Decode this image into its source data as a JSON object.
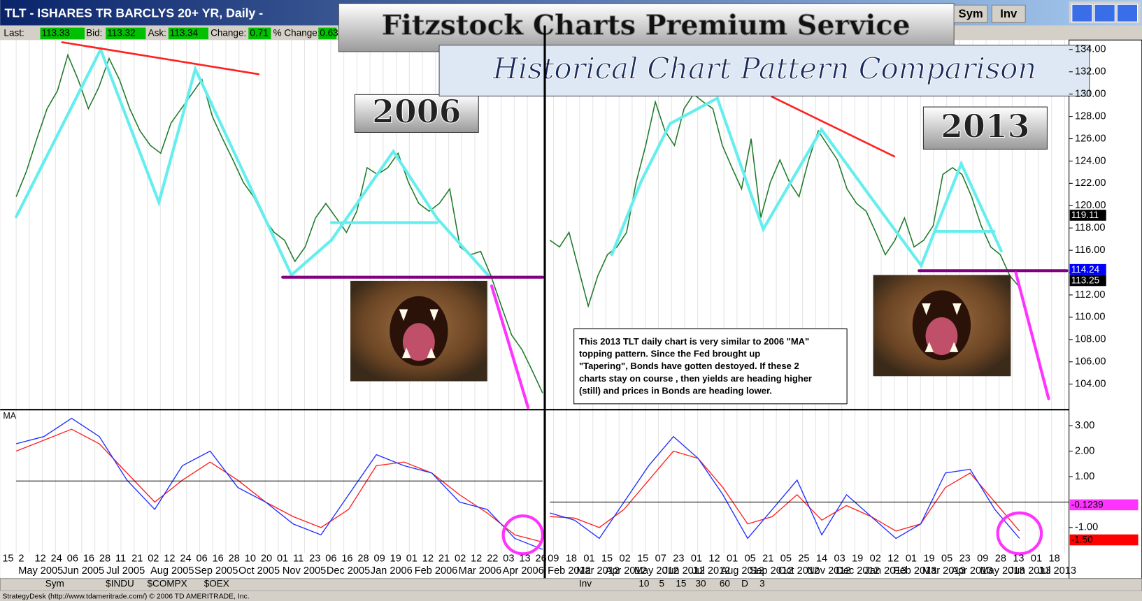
{
  "window": {
    "title": "TLT - ISHARES TR BARCLYS 20+ YR, Daily -",
    "buttons": [
      "Sym",
      "Inv"
    ]
  },
  "quote": [
    {
      "label": "Last:",
      "value": "113.33"
    },
    {
      "label": "Bid:",
      "value": "113.32"
    },
    {
      "label": "Ask:",
      "value": "113.34"
    },
    {
      "label": "Change:",
      "value": "0.71"
    },
    {
      "label": "% Change:",
      "value": "0.63"
    }
  ],
  "banner": {
    "title": "Fitzstock Charts Premium Service",
    "subtitle": "Historical Chart Pattern Comparison"
  },
  "panels": [
    {
      "label": "2006"
    },
    {
      "label": "2013"
    }
  ],
  "note": [
    "This 2013 TLT daily chart is very similar to 2006 \"MA\"",
    "topping pattern.    Since the Fed brought up",
    "\"Tapering\", Bonds have gotten destoyed.   If these 2",
    "charts stay on course , then yields are heading higher",
    "(still) and prices in Bonds are heading lower."
  ],
  "price_chart": {
    "ylim": [
      102,
      135
    ],
    "yticks": [
      {
        "value": 104,
        "label": "104.00"
      },
      {
        "value": 106,
        "label": "106.00"
      },
      {
        "value": 108,
        "label": "108.00"
      },
      {
        "value": 110,
        "label": "110.00"
      },
      {
        "value": 112,
        "label": "112.00"
      },
      {
        "value": 114,
        "label": "114.00"
      },
      {
        "value": 116,
        "label": "116.00"
      },
      {
        "value": 118,
        "label": "118.00"
      },
      {
        "value": 120,
        "label": "120.00"
      },
      {
        "value": 122,
        "label": "122.00"
      },
      {
        "value": 124,
        "label": "124.00"
      },
      {
        "value": 126,
        "label": "126.00"
      },
      {
        "value": 128,
        "label": "128.00"
      },
      {
        "value": 130,
        "label": "130.00"
      },
      {
        "value": 132,
        "label": "132.00"
      },
      {
        "value": 134,
        "label": "134.00"
      }
    ],
    "left_values": [
      120.8,
      123.1,
      126.0,
      128.7,
      130.3,
      133.5,
      131.3,
      128.7,
      130.6,
      133.2,
      131.3,
      128.7,
      126.7,
      125.4,
      124.7,
      127.4,
      128.7,
      130.0,
      131.3,
      128.0,
      126.0,
      124.1,
      122.1,
      120.8,
      118.9,
      117.6,
      116.9,
      115.0,
      116.3,
      118.9,
      120.2,
      118.9,
      117.6,
      119.5,
      123.4,
      122.8,
      123.4,
      124.7,
      122.1,
      120.2,
      119.5,
      120.2,
      121.5,
      116.3,
      115.6,
      115.9,
      113.7,
      111.0,
      108.4,
      107.1,
      105.2,
      103.2
    ],
    "right_values": [
      116.9,
      116.3,
      117.6,
      114.3,
      111.0,
      113.7,
      115.6,
      116.3,
      117.6,
      122.1,
      125.4,
      129.3,
      126.7,
      125.4,
      128.7,
      130.0,
      129.3,
      128.7,
      125.4,
      123.4,
      121.5,
      126.0,
      118.9,
      122.1,
      124.1,
      122.1,
      120.8,
      124.1,
      126.7,
      125.4,
      124.1,
      121.5,
      120.2,
      119.5,
      117.6,
      115.6,
      116.9,
      118.9,
      116.3,
      116.9,
      118.2,
      122.8,
      123.4,
      122.8,
      120.8,
      118.2,
      116.3,
      115.6,
      113.7,
      112.7
    ],
    "markers": [
      {
        "value": 119.11,
        "color": "#000000"
      },
      {
        "value": 114.24,
        "color": "#0000ff"
      },
      {
        "value": 113.25,
        "color": "#000000"
      }
    ]
  },
  "macd_chart": {
    "label": "MA",
    "ylim": [
      -2,
      3.5
    ],
    "yticks": [
      {
        "value": 3,
        "label": "3.00"
      },
      {
        "value": 2,
        "label": "2.00"
      },
      {
        "value": 1,
        "label": "1.00"
      },
      {
        "value": -1,
        "label": "-1.00"
      }
    ],
    "left_macd": [
      2.29,
      2.57,
      3.29,
      2.57,
      0.86,
      -0.29,
      1.43,
      2.0,
      0.57,
      0,
      -0.86,
      -1.29,
      0.29,
      1.86,
      1.43,
      1.14,
      0,
      -0.29,
      -1.43,
      -1.86
    ],
    "left_signal": [
      2.0,
      2.43,
      2.86,
      2.29,
      1.14,
      0,
      0.86,
      1.57,
      0.86,
      0,
      -0.57,
      -1.0,
      -0.29,
      1.43,
      1.57,
      1.14,
      0.29,
      -0.43,
      -1.29,
      -1.57
    ],
    "right_macd": [
      -0.43,
      -0.71,
      -1.43,
      0,
      1.43,
      2.57,
      1.71,
      0.29,
      -1.43,
      -0.29,
      0.86,
      -1.29,
      0.29,
      -0.57,
      -1.43,
      -0.86,
      1.14,
      1.29,
      -0.29,
      -1.43
    ],
    "right_signal": [
      -0.57,
      -0.63,
      -1.0,
      -0.29,
      0.86,
      2.0,
      1.71,
      0.57,
      -0.86,
      -0.57,
      0.29,
      -0.71,
      -0.14,
      -0.57,
      -1.14,
      -0.86,
      0.57,
      1.14,
      0,
      -1.14
    ],
    "markers": [
      {
        "value": -0.1239,
        "color": "#ff33ff"
      },
      {
        "value": -1.5,
        "label": "-1.50",
        "color": "#ff0000"
      }
    ]
  },
  "date_axis": {
    "left_days": [
      "15",
      "2",
      "12",
      "24",
      "06",
      "16",
      "28",
      "11",
      "21",
      "02",
      "12",
      "24",
      "06",
      "16",
      "28",
      "10",
      "20",
      "01",
      "11",
      "23",
      "06",
      "16",
      "28",
      "09",
      "19",
      "01",
      "12",
      "21",
      "02",
      "12",
      "22",
      "03",
      "13",
      "26"
    ],
    "left_months": [
      "May 2005",
      "Jun 2005",
      "Jul 2005",
      "Aug 2005",
      "Sep 2005",
      "Oct 2005",
      "Nov 2005",
      "Dec 2005",
      "Jan 2006",
      "Feb 2006",
      "Mar 2006",
      "Apr 2006"
    ],
    "right_days": [
      "09",
      "18",
      "01",
      "15",
      "02",
      "15",
      "07",
      "23",
      "01",
      "12",
      "01",
      "05",
      "21",
      "05",
      "25",
      "14",
      "03",
      "19",
      "02",
      "12",
      "01",
      "19",
      "05",
      "23",
      "09",
      "28",
      "13",
      "01",
      "18"
    ],
    "right_months": [
      "Feb 2012",
      "Mar 2012",
      "Apr 2012",
      "May 2012",
      "Jun 2012",
      "Jul 2012",
      "Aug 2012",
      "Sep 2012",
      "Oct 2012",
      "Nov 2012",
      "Dec 2012",
      "Jan 2013",
      "Feb 2013",
      "Mar 2013",
      "Apr 2013",
      "May 2013",
      "Jun 2013",
      "Jul 2013"
    ]
  },
  "toolbar": {
    "left": [
      "Sym",
      "$INDU",
      "$COMPX",
      "$OEX"
    ],
    "right": [
      "Inv",
      "10",
      "5",
      "15",
      "30",
      "60",
      "D",
      "3"
    ]
  },
  "status": "StrategyDesk (http://www.tdameritrade.com/) © 2006 TD AMERITRADE, Inc."
}
